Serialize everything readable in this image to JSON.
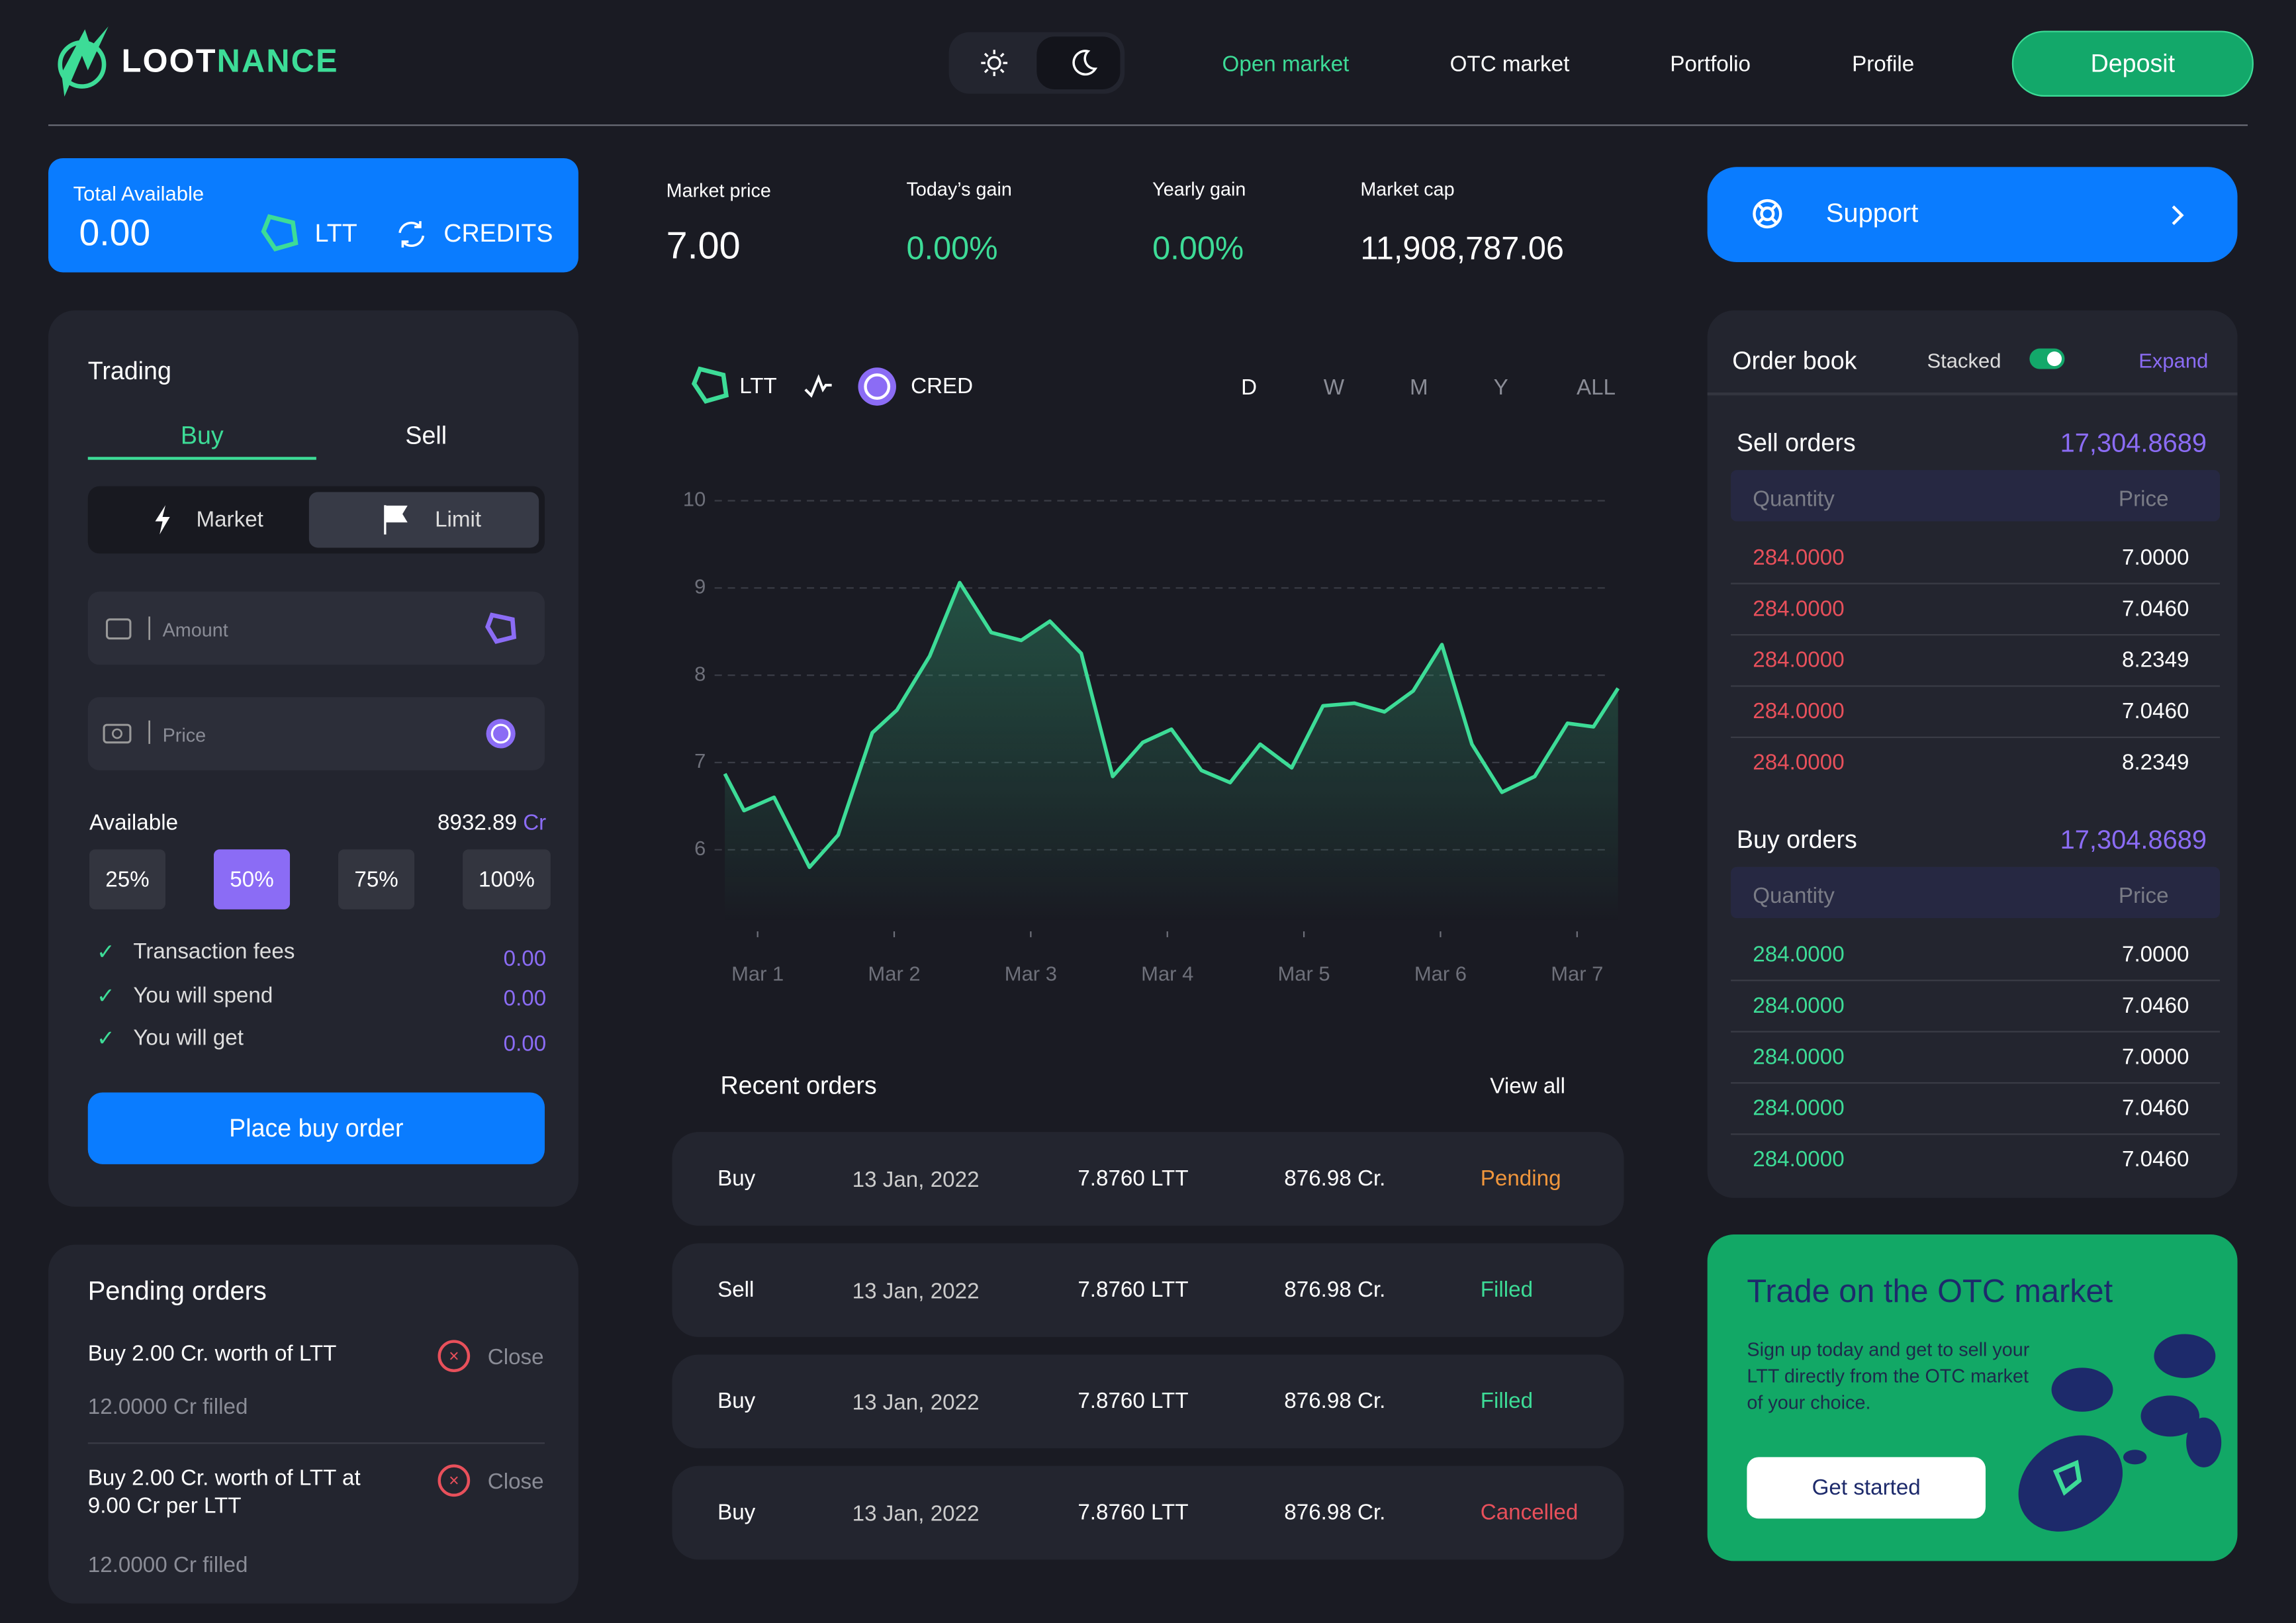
{
  "nav": {
    "logo_a": "LOOT",
    "logo_b": "NANCE",
    "links": [
      "Open market",
      "OTC market",
      "Portfolio",
      "Profile"
    ],
    "deposit": "Deposit"
  },
  "balance": {
    "label": "Total Available",
    "value": "0.00",
    "tokens": [
      "LTT",
      "CREDITS"
    ]
  },
  "stats": [
    {
      "label": "Market price",
      "value": "7.00"
    },
    {
      "label": "Today’s gain",
      "value": "0.00%"
    },
    {
      "label": "Yearly gain",
      "value": "0.00%"
    },
    {
      "label": "Market cap",
      "value": "11,908,787.06"
    }
  ],
  "support": "Support",
  "trading": {
    "title": "Trading",
    "tabs": [
      "Buy",
      "Sell"
    ],
    "modes": [
      "Market",
      "Limit"
    ],
    "amount": "Amount",
    "price": "Price",
    "available_label": "Available",
    "available_value": "8932.89",
    "available_unit": "Cr",
    "percents": [
      "25%",
      "50%",
      "75%",
      "100%"
    ],
    "summary": [
      {
        "label": "Transaction fees",
        "value": "0.00"
      },
      {
        "label": "You will spend",
        "value": "0.00"
      },
      {
        "label": "You will get",
        "value": "0.00"
      }
    ],
    "button": "Place buy order"
  },
  "pending": {
    "title": "Pending orders",
    "items": [
      {
        "text": "Buy 2.00 Cr. worth of LTT",
        "status": "12.0000 Cr filled",
        "action": "Close"
      },
      {
        "text": "Buy 2.00 Cr. worth of LTT at 9.00 Cr per LTT",
        "status": "12.0000 Cr filled",
        "action": "Close"
      }
    ]
  },
  "price_chart": {
    "type": "line",
    "tokens": [
      "LTT",
      "CRED"
    ],
    "ranges": [
      "D",
      "W",
      "M",
      "Y",
      "ALL"
    ],
    "color": "#3ddc97",
    "x": [
      0.76,
      0.9,
      1.12,
      1.38,
      1.59,
      1.84,
      2.02,
      2.26,
      2.48,
      2.71,
      2.93,
      3.14,
      3.37,
      3.6,
      3.82,
      4.03,
      4.25,
      4.46,
      4.68,
      4.91,
      5.14,
      5.37,
      5.59,
      5.8,
      6.01,
      6.23,
      6.45,
      6.69,
      6.93,
      7.12,
      7.3
    ],
    "values": [
      6.87,
      6.45,
      6.6,
      5.8,
      6.17,
      7.34,
      7.6,
      8.22,
      9.06,
      8.49,
      8.4,
      8.62,
      8.25,
      6.84,
      7.23,
      7.38,
      6.91,
      6.77,
      7.21,
      6.94,
      7.65,
      7.68,
      7.58,
      7.82,
      8.35,
      7.21,
      6.66,
      6.84,
      7.45,
      7.41,
      7.85
    ],
    "xlim": [
      0.76,
      7.3
    ],
    "xticks": [
      {
        "value": 1,
        "label": "Mar 1"
      },
      {
        "value": 2,
        "label": "Mar 2"
      },
      {
        "value": 3,
        "label": "Mar 3"
      },
      {
        "value": 4,
        "label": "Mar 4"
      },
      {
        "value": 5,
        "label": "Mar 5"
      },
      {
        "value": 6,
        "label": "Mar 6"
      },
      {
        "value": 7,
        "label": "Mar 7"
      }
    ],
    "ylim": [
      5.3,
      10.2
    ],
    "yticks": [
      6,
      7,
      8,
      9,
      10
    ],
    "grid": true
  },
  "recent_orders": {
    "title": "Recent orders",
    "view_all": "View all",
    "status_colors": [
      "#f0963c",
      "#3ddc97",
      "#3ddc97",
      "#e8505b"
    ],
    "rows": [
      [
        "Buy",
        "13 Jan, 2022",
        "7.8760 LTT",
        "876.98 Cr.",
        "Pending"
      ],
      [
        "Sell",
        "13 Jan, 2022",
        "7.8760 LTT",
        "876.98 Cr.",
        "Filled"
      ],
      [
        "Buy",
        "13 Jan, 2022",
        "7.8760 LTT",
        "876.98 Cr.",
        "Filled"
      ],
      [
        "Buy",
        "13 Jan, 2022",
        "7.8760 LTT",
        "876.98 Cr.",
        "Cancelled"
      ]
    ]
  },
  "order_book": {
    "title": "Order book",
    "stacked": "Stacked",
    "expand": "Expand",
    "sell": {
      "title": "Sell orders",
      "total": "17,304.8689",
      "headers": [
        "Quantity",
        "Price"
      ],
      "rows": [
        [
          "284.0000",
          "7.0000"
        ],
        [
          "284.0000",
          "7.0460"
        ],
        [
          "284.0000",
          "8.2349"
        ],
        [
          "284.0000",
          "7.0460"
        ],
        [
          "284.0000",
          "8.2349"
        ]
      ]
    },
    "buy": {
      "title": "Buy orders",
      "total": "17,304.8689",
      "headers": [
        "Quantity",
        "Price"
      ],
      "rows": [
        [
          "284.0000",
          "7.0000"
        ],
        [
          "284.0000",
          "7.0460"
        ],
        [
          "284.0000",
          "7.0000"
        ],
        [
          "284.0000",
          "7.0460"
        ],
        [
          "284.0000",
          "7.0460"
        ]
      ]
    }
  },
  "otc": {
    "title": "Trade on the OTC market",
    "text": "Sign up today and get to sell your LTT directly from the OTC market of your choice.",
    "button": "Get started"
  }
}
